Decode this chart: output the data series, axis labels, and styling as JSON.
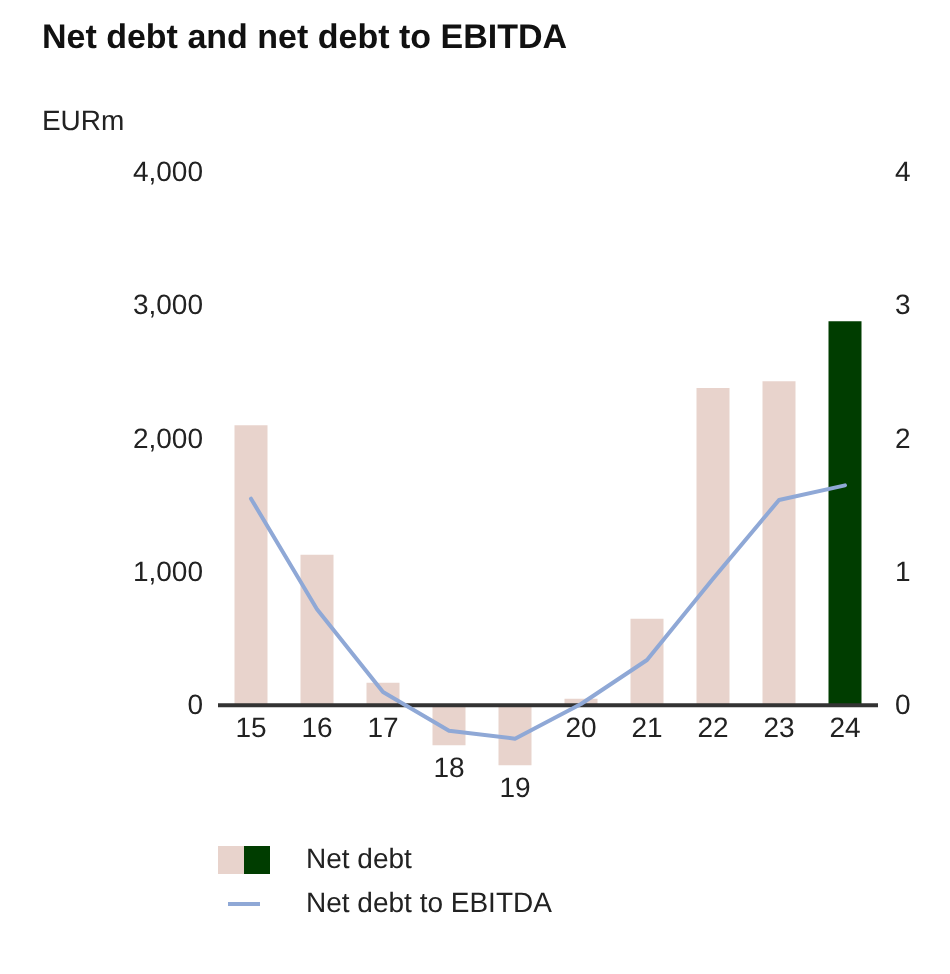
{
  "chart_data": {
    "type": "bar",
    "title": "Net debt and net debt to EBITDA",
    "ylabel": "EURm",
    "categories": [
      "15",
      "16",
      "17",
      "18",
      "19",
      "20",
      "21",
      "22",
      "23",
      "24"
    ],
    "series": [
      {
        "name": "Net debt",
        "colors": [
          "#e8d3cc",
          "#e8d3cc",
          "#e8d3cc",
          "#e8d3cc",
          "#e8d3cc",
          "#e8d3cc",
          "#e8d3cc",
          "#e8d3cc",
          "#e8d3cc",
          "#003d00"
        ],
        "values": [
          2100,
          1130,
          170,
          -300,
          -450,
          50,
          650,
          2380,
          2430,
          2880
        ]
      },
      {
        "name": "Net debt to EBITDA",
        "type": "line",
        "axis": "y2",
        "color": "#8fa8d6",
        "values": [
          1.55,
          0.72,
          0.1,
          -0.19,
          -0.25,
          0.01,
          0.34,
          0.95,
          1.54,
          1.65
        ]
      }
    ],
    "ylim": [
      -500,
      4000
    ],
    "yticks": [
      {
        "value": 0,
        "label": "0"
      },
      {
        "value": 1000,
        "label": "1,000"
      },
      {
        "value": 2000,
        "label": "2,000"
      },
      {
        "value": 3000,
        "label": "3,000"
      },
      {
        "value": 4000,
        "label": "4,000"
      }
    ],
    "y2lim": [
      -0.5,
      4
    ],
    "y2ticks": [
      0,
      1,
      2,
      3,
      4
    ],
    "grid": false,
    "line_style": "solid",
    "legend": "bottom left"
  }
}
